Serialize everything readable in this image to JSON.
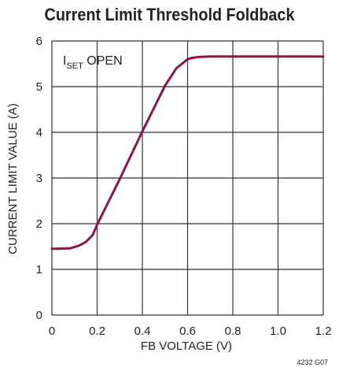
{
  "chart_data": {
    "type": "line",
    "title": "Current Limit Threshold Foldback",
    "xlabel": "FB VOLTAGE (V)",
    "ylabel": "CURRENT LIMIT VALUE (A)",
    "xlim": [
      0,
      1.2
    ],
    "ylim": [
      0,
      6
    ],
    "x_ticks": [
      "0",
      "0.2",
      "0.4",
      "0.6",
      "0.8",
      "1.0",
      "1.2"
    ],
    "y_ticks": [
      "0",
      "1",
      "2",
      "3",
      "4",
      "5",
      "6"
    ],
    "grid": true,
    "annotation": {
      "main": "I",
      "sub": "SET",
      "rest": " OPEN"
    },
    "figure_code": "4232 G07",
    "line_color": "#8b1a3a",
    "series": [
      {
        "x": [
          0,
          0.08,
          0.12,
          0.15,
          0.18,
          0.2,
          0.25,
          0.3,
          0.35,
          0.4,
          0.45,
          0.5,
          0.55,
          0.6,
          0.62,
          0.65,
          0.7,
          0.8,
          1.0,
          1.2
        ],
        "y": [
          1.45,
          1.46,
          1.52,
          1.6,
          1.75,
          1.98,
          2.48,
          2.98,
          3.5,
          4.02,
          4.52,
          5.02,
          5.4,
          5.6,
          5.63,
          5.65,
          5.66,
          5.66,
          5.66,
          5.66
        ]
      }
    ]
  }
}
